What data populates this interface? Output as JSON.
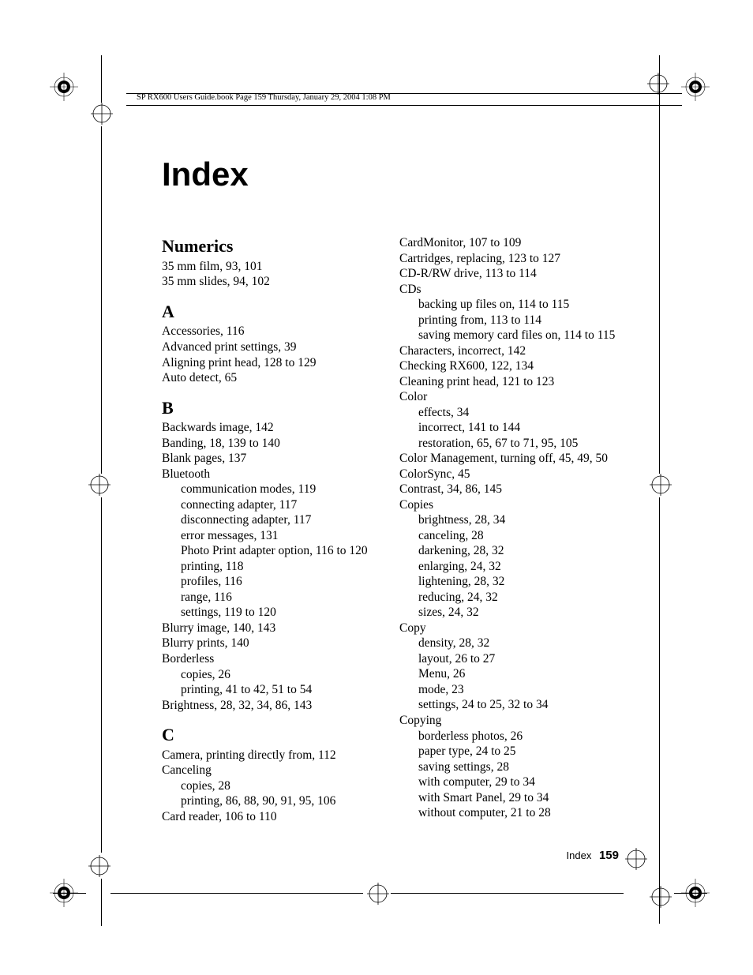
{
  "header_line": "SP RX600 Users Guide.book  Page 159  Thursday, January 29, 2004  1:08 PM",
  "title": "Index",
  "footer_label": "Index",
  "footer_page": "159",
  "left_col": [
    {
      "type": "head",
      "text": "Numerics"
    },
    {
      "type": "entry",
      "text": "35 mm film, 93, 101"
    },
    {
      "type": "entry",
      "text": "35 mm slides, 94, 102"
    },
    {
      "type": "head",
      "text": "A"
    },
    {
      "type": "entry",
      "text": "Accessories, 116"
    },
    {
      "type": "entry",
      "text": "Advanced print settings, 39"
    },
    {
      "type": "entry",
      "text": "Aligning print head, 128 to 129"
    },
    {
      "type": "entry",
      "text": "Auto detect, 65"
    },
    {
      "type": "head",
      "text": "B"
    },
    {
      "type": "entry",
      "text": "Backwards image, 142"
    },
    {
      "type": "entry",
      "text": "Banding, 18, 139 to 140"
    },
    {
      "type": "entry",
      "text": "Blank pages, 137"
    },
    {
      "type": "entry",
      "text": "Bluetooth"
    },
    {
      "type": "sub",
      "text": "communication modes, 119"
    },
    {
      "type": "sub",
      "text": "connecting adapter, 117"
    },
    {
      "type": "sub",
      "text": "disconnecting adapter, 117"
    },
    {
      "type": "sub",
      "text": "error messages, 131"
    },
    {
      "type": "sub",
      "text": "Photo Print adapter option, 116 to 120"
    },
    {
      "type": "sub",
      "text": "printing, 118"
    },
    {
      "type": "sub",
      "text": "profiles, 116"
    },
    {
      "type": "sub",
      "text": "range, 116"
    },
    {
      "type": "sub",
      "text": "settings, 119 to 120"
    },
    {
      "type": "entry",
      "text": "Blurry image, 140, 143"
    },
    {
      "type": "entry",
      "text": "Blurry prints, 140"
    },
    {
      "type": "entry",
      "text": "Borderless"
    },
    {
      "type": "sub",
      "text": "copies, 26"
    },
    {
      "type": "sub",
      "text": "printing, 41 to 42, 51 to 54"
    },
    {
      "type": "entry",
      "text": "Brightness, 28, 32, 34, 86, 143"
    },
    {
      "type": "head",
      "text": "C"
    },
    {
      "type": "entry",
      "text": "Camera, printing directly from, 112"
    },
    {
      "type": "entry",
      "text": "Canceling"
    },
    {
      "type": "sub",
      "text": "copies, 28"
    },
    {
      "type": "sub",
      "text": "printing, 86, 88, 90, 91, 95, 106"
    },
    {
      "type": "entry",
      "text": "Card reader, 106 to 110"
    }
  ],
  "right_col": [
    {
      "type": "entry",
      "text": "CardMonitor, 107 to 109"
    },
    {
      "type": "entry",
      "text": "Cartridges, replacing, 123 to 127"
    },
    {
      "type": "entry",
      "text": "CD-R/RW drive, 113 to 114"
    },
    {
      "type": "entry",
      "text": "CDs"
    },
    {
      "type": "sub",
      "text": "backing up files on, 114 to 115"
    },
    {
      "type": "sub",
      "text": "printing from, 113 to 114"
    },
    {
      "type": "sub",
      "text": "saving memory card files on, 114 to 115"
    },
    {
      "type": "entry",
      "text": "Characters, incorrect, 142"
    },
    {
      "type": "entry",
      "text": "Checking RX600, 122, 134"
    },
    {
      "type": "entry",
      "text": "Cleaning print head, 121 to 123"
    },
    {
      "type": "entry",
      "text": "Color"
    },
    {
      "type": "sub",
      "text": "effects, 34"
    },
    {
      "type": "sub",
      "text": "incorrect, 141 to 144"
    },
    {
      "type": "sub",
      "text": "restoration, 65, 67 to 71, 95, 105"
    },
    {
      "type": "entry",
      "text": "Color Management, turning off, 45, 49, 50"
    },
    {
      "type": "entry",
      "text": "ColorSync, 45"
    },
    {
      "type": "entry",
      "text": "Contrast, 34, 86, 145"
    },
    {
      "type": "entry",
      "text": "Copies"
    },
    {
      "type": "sub",
      "text": "brightness, 28, 34"
    },
    {
      "type": "sub",
      "text": "canceling, 28"
    },
    {
      "type": "sub",
      "text": "darkening, 28, 32"
    },
    {
      "type": "sub",
      "text": "enlarging, 24, 32"
    },
    {
      "type": "sub",
      "text": "lightening, 28, 32"
    },
    {
      "type": "sub",
      "text": "reducing, 24, 32"
    },
    {
      "type": "sub",
      "text": "sizes, 24, 32"
    },
    {
      "type": "entry",
      "text": "Copy"
    },
    {
      "type": "sub",
      "text": "density, 28, 32"
    },
    {
      "type": "sub",
      "text": "layout, 26 to 27"
    },
    {
      "type": "sub",
      "text": "Menu, 26"
    },
    {
      "type": "sub",
      "text": "mode, 23"
    },
    {
      "type": "sub",
      "text": "settings, 24 to 25, 32 to 34"
    },
    {
      "type": "entry",
      "text": "Copying"
    },
    {
      "type": "sub",
      "text": "borderless photos, 26"
    },
    {
      "type": "sub",
      "text": "paper type, 24 to 25"
    },
    {
      "type": "sub",
      "text": "saving settings, 28"
    },
    {
      "type": "sub",
      "text": "with computer, 29 to 34"
    },
    {
      "type": "sub",
      "text": "with Smart Panel, 29 to 34"
    },
    {
      "type": "sub",
      "text": "without computer, 21 to 28"
    }
  ],
  "marks": {
    "reg_color": "#000000",
    "positions": {
      "crop_lines": true
    }
  }
}
